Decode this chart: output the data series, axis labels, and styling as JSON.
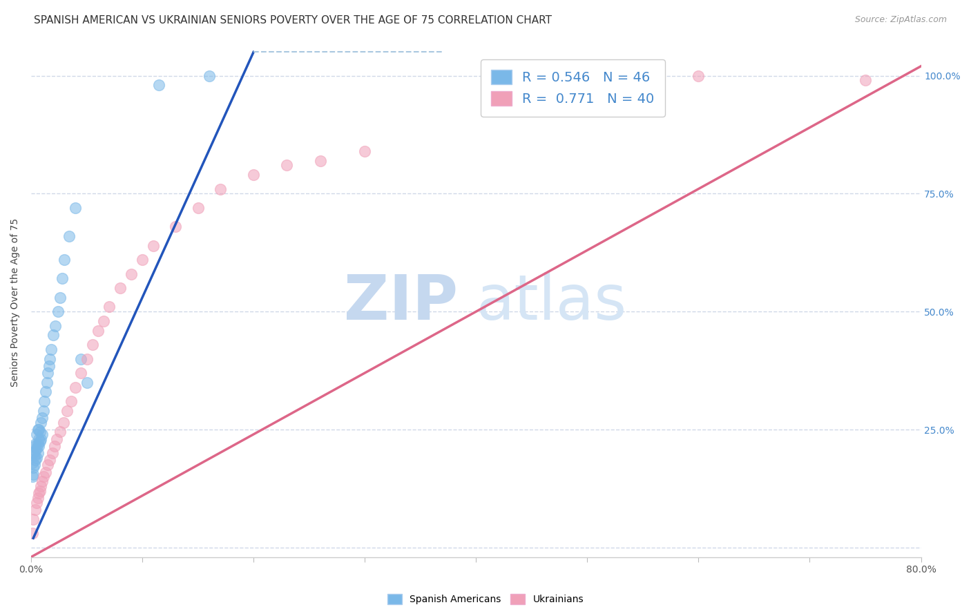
{
  "title": "SPANISH AMERICAN VS UKRAINIAN SENIORS POVERTY OVER THE AGE OF 75 CORRELATION CHART",
  "source": "Source: ZipAtlas.com",
  "ylabel": "Seniors Poverty Over the Age of 75",
  "watermark": "ZIPatlas",
  "blue_color": "#7ab8e8",
  "pink_color": "#f0a0b8",
  "blue_line_color": "#2255bb",
  "pink_line_color": "#dd6688",
  "dashed_line_color": "#aac8e0",
  "xlim": [
    0.0,
    0.8
  ],
  "ylim": [
    -0.02,
    1.06
  ],
  "yticks": [
    0.0,
    0.25,
    0.5,
    0.75,
    1.0
  ],
  "ytick_labels": [
    "",
    "25.0%",
    "50.0%",
    "75.0%",
    "100.0%"
  ],
  "blue_scatter_x": [
    0.001,
    0.001,
    0.002,
    0.002,
    0.002,
    0.003,
    0.003,
    0.003,
    0.004,
    0.004,
    0.004,
    0.005,
    0.005,
    0.005,
    0.006,
    0.006,
    0.006,
    0.007,
    0.007,
    0.007,
    0.008,
    0.008,
    0.009,
    0.009,
    0.01,
    0.01,
    0.011,
    0.012,
    0.013,
    0.014,
    0.015,
    0.016,
    0.017,
    0.018,
    0.02,
    0.022,
    0.024,
    0.026,
    0.028,
    0.03,
    0.034,
    0.04,
    0.045,
    0.05,
    0.115,
    0.16
  ],
  "blue_scatter_y": [
    0.15,
    0.18,
    0.155,
    0.17,
    0.2,
    0.175,
    0.195,
    0.215,
    0.185,
    0.205,
    0.22,
    0.19,
    0.21,
    0.24,
    0.2,
    0.22,
    0.25,
    0.215,
    0.23,
    0.25,
    0.225,
    0.245,
    0.23,
    0.265,
    0.24,
    0.275,
    0.29,
    0.31,
    0.33,
    0.35,
    0.37,
    0.385,
    0.4,
    0.42,
    0.45,
    0.47,
    0.5,
    0.53,
    0.57,
    0.61,
    0.66,
    0.72,
    0.4,
    0.35,
    0.98,
    1.0
  ],
  "pink_scatter_x": [
    0.001,
    0.002,
    0.004,
    0.005,
    0.006,
    0.007,
    0.008,
    0.009,
    0.01,
    0.011,
    0.013,
    0.015,
    0.017,
    0.019,
    0.021,
    0.023,
    0.026,
    0.029,
    0.032,
    0.036,
    0.04,
    0.045,
    0.05,
    0.055,
    0.06,
    0.065,
    0.07,
    0.08,
    0.09,
    0.1,
    0.11,
    0.13,
    0.15,
    0.17,
    0.2,
    0.23,
    0.26,
    0.3,
    0.6,
    0.75
  ],
  "pink_scatter_y": [
    0.03,
    0.06,
    0.08,
    0.095,
    0.105,
    0.115,
    0.12,
    0.13,
    0.14,
    0.15,
    0.16,
    0.175,
    0.185,
    0.2,
    0.215,
    0.23,
    0.245,
    0.265,
    0.29,
    0.31,
    0.34,
    0.37,
    0.4,
    0.43,
    0.46,
    0.48,
    0.51,
    0.55,
    0.58,
    0.61,
    0.64,
    0.68,
    0.72,
    0.76,
    0.79,
    0.81,
    0.82,
    0.84,
    1.0,
    0.99
  ],
  "blue_line_x": [
    0.002,
    0.2
  ],
  "blue_line_y": [
    0.02,
    1.05
  ],
  "pink_line_x": [
    0.0,
    0.8
  ],
  "pink_line_y": [
    -0.02,
    1.02
  ],
  "dashed_line_x": [
    0.2,
    0.37
  ],
  "dashed_line_y": [
    1.05,
    1.05
  ],
  "background_color": "#ffffff",
  "grid_color": "#d0d8e8",
  "title_fontsize": 11,
  "source_fontsize": 9,
  "label_fontsize": 10,
  "tick_fontsize": 10,
  "legend_fontsize": 14,
  "watermark_fontsize": 65,
  "marker_size": 130,
  "marker_alpha": 0.55,
  "marker_lw": 1.0
}
